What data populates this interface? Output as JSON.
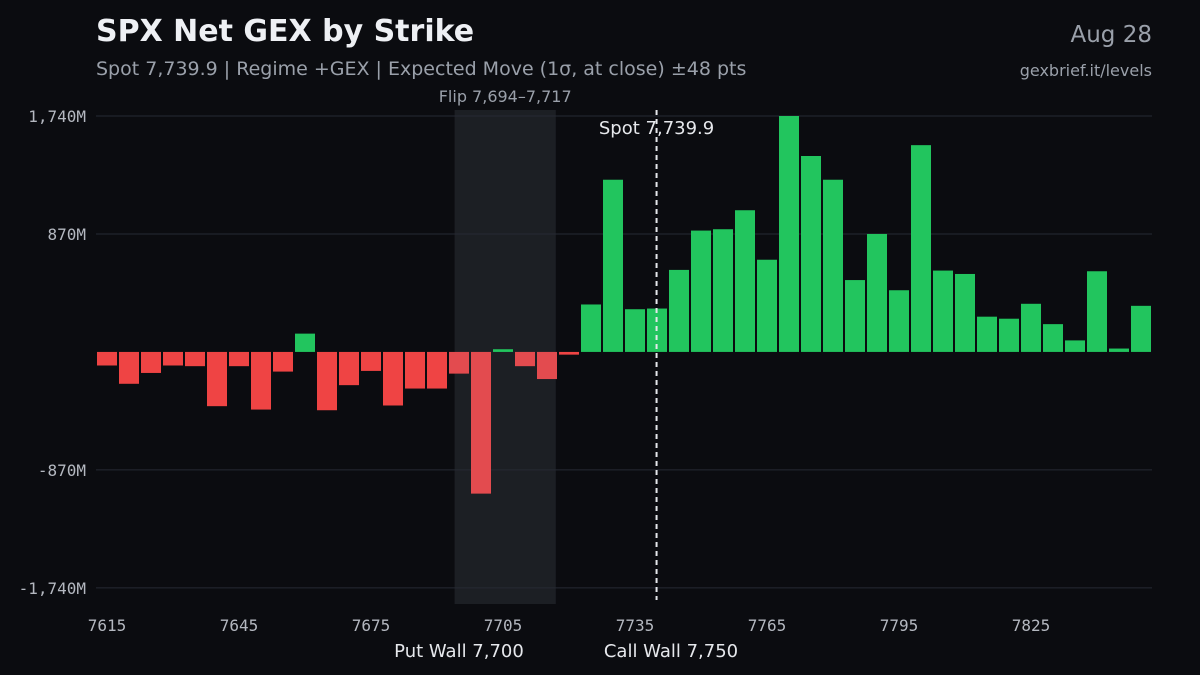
{
  "header": {
    "title": "SPX Net GEX by Strike",
    "subtitle": "Spot 7,739.9 | Regime +GEX | Expected Move (1σ, at close) ±48 pts",
    "date": "Aug 28",
    "source": "gexbrief.it/levels"
  },
  "colors": {
    "background": "#0b0c10",
    "positive": "#22c55e",
    "negative": "#ef4444",
    "gridline": "#262a33",
    "flip_zone": "#1c1f24",
    "text_muted": "#9aa0aa"
  },
  "chart_data": {
    "type": "bar",
    "title": "SPX Net GEX by Strike",
    "xlabel": "",
    "ylabel": "",
    "grid": true,
    "x_ticks": [
      "7615",
      "7645",
      "7675",
      "7705",
      "7735",
      "7765",
      "7795",
      "7825"
    ],
    "y_ticks": [
      {
        "value": 1740,
        "label": "1,740M"
      },
      {
        "value": 870,
        "label": "870M"
      },
      {
        "value": -870,
        "label": "-870M"
      },
      {
        "value": -1740,
        "label": "-1,740M"
      }
    ],
    "ylim": [
      -1800,
      1740
    ],
    "xlim": [
      7612.5,
      7852.5
    ],
    "strikes": [
      7615,
      7620,
      7625,
      7630,
      7635,
      7640,
      7645,
      7650,
      7655,
      7660,
      7665,
      7670,
      7675,
      7680,
      7685,
      7690,
      7695,
      7700,
      7705,
      7710,
      7715,
      7720,
      7725,
      7730,
      7735,
      7740,
      7745,
      7750,
      7755,
      7760,
      7765,
      7770,
      7775,
      7780,
      7785,
      7790,
      7795,
      7800,
      7805,
      7810,
      7815,
      7820,
      7825,
      7830,
      7835,
      7840,
      7845,
      7850
    ],
    "values": [
      -100,
      -235,
      -155,
      -100,
      -105,
      -400,
      -105,
      -425,
      -145,
      135,
      -430,
      -245,
      -140,
      -395,
      -270,
      -270,
      -160,
      -1045,
      20,
      -105,
      -200,
      -20,
      350,
      1270,
      315,
      320,
      605,
      895,
      905,
      1045,
      680,
      1740,
      1445,
      1270,
      530,
      870,
      455,
      1525,
      600,
      575,
      260,
      245,
      355,
      205,
      85,
      595,
      25,
      340
    ],
    "annotations": {
      "spot": {
        "value": 7739.9,
        "label": "Spot 7,739.9"
      },
      "flip_zone": {
        "from": 7694,
        "to": 7717,
        "label": "Flip 7,694–7,717"
      },
      "put_wall": {
        "value": 7700,
        "label": "Put Wall 7,700"
      },
      "call_wall": {
        "value": 7750,
        "label": "Call Wall 7,750"
      }
    }
  }
}
